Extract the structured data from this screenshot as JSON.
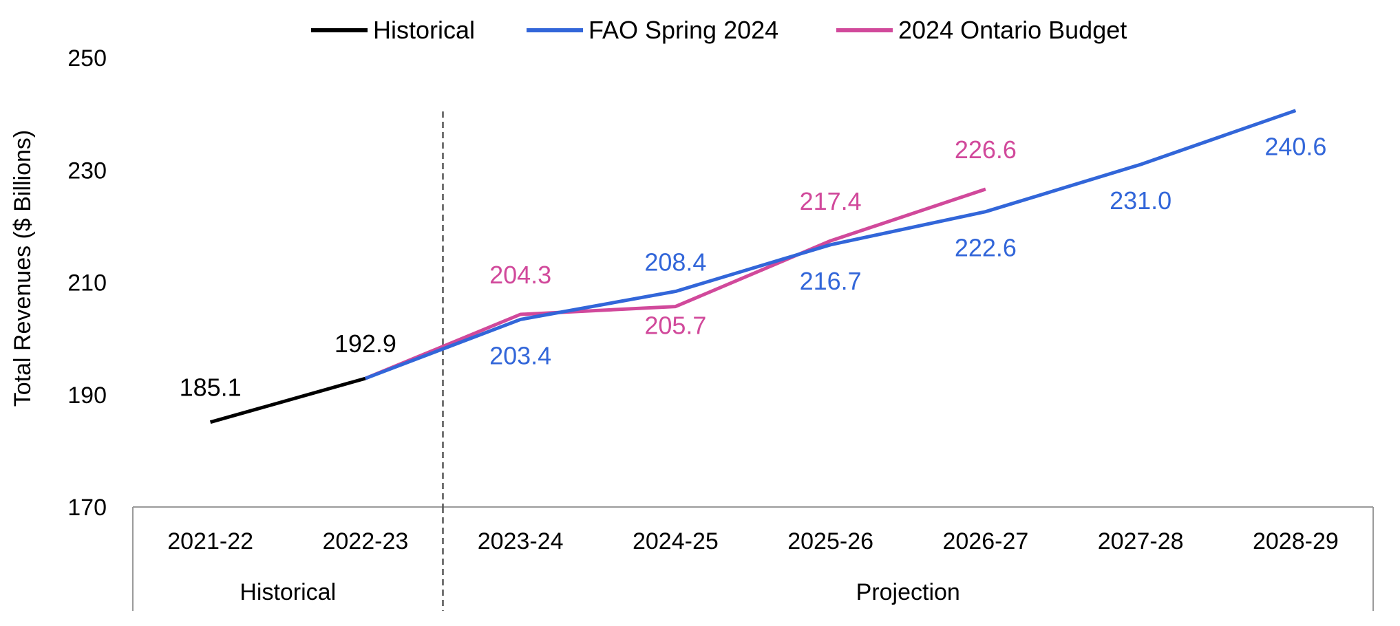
{
  "chart_data": {
    "type": "line",
    "title": "",
    "xlabel": "",
    "ylabel": "Total Revenues ($ Billions)",
    "ylim": [
      170,
      250
    ],
    "yticks": [
      170,
      190,
      210,
      230,
      250
    ],
    "grid": false,
    "legend_position": "top-center",
    "categories": [
      "2021-22",
      "2022-23",
      "2023-24",
      "2024-25",
      "2025-26",
      "2026-27",
      "2027-28",
      "2028-29"
    ],
    "groups": [
      {
        "label": "Historical",
        "categories": [
          "2021-22",
          "2022-23"
        ]
      },
      {
        "label": "Projection",
        "categories": [
          "2023-24",
          "2024-25",
          "2025-26",
          "2026-27",
          "2027-28",
          "2028-29"
        ]
      }
    ],
    "series": [
      {
        "name": "Historical",
        "color": "#000000",
        "values": [
          185.1,
          192.9,
          null,
          null,
          null,
          null,
          null,
          null
        ],
        "labels": [
          "185.1",
          "192.9",
          "",
          "",
          "",
          "",
          "",
          ""
        ]
      },
      {
        "name": "FAO Spring 2024",
        "color": "#3266d9",
        "values": [
          null,
          192.9,
          203.4,
          208.4,
          216.7,
          222.6,
          231.0,
          240.6
        ],
        "labels": [
          "",
          "",
          "203.4",
          "208.4",
          "216.7",
          "222.6",
          "231.0",
          "240.6"
        ]
      },
      {
        "name": "2024 Ontario Budget",
        "color": "#d1499b",
        "values": [
          null,
          192.9,
          204.3,
          205.7,
          217.4,
          226.6,
          null,
          null
        ],
        "labels": [
          "",
          "",
          "204.3",
          "205.7",
          "217.4",
          "226.6",
          "",
          ""
        ]
      }
    ]
  }
}
